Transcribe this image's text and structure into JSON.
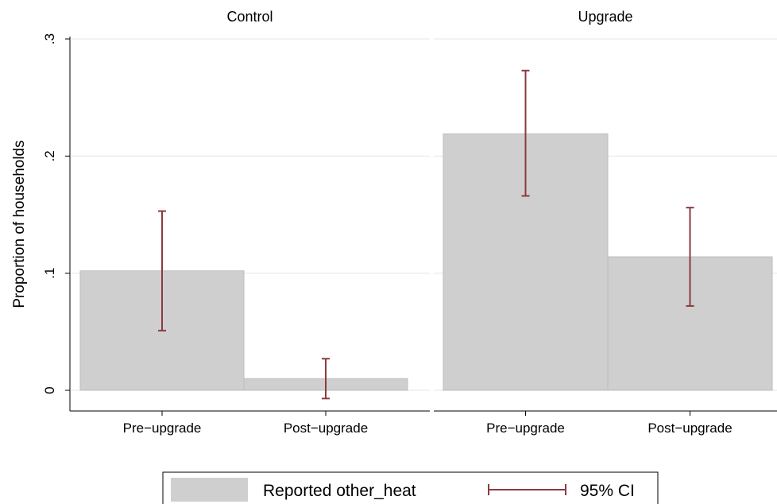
{
  "chart_data": {
    "type": "bar",
    "ylabel": "Proportion of households",
    "ylim": [
      0,
      0.3
    ],
    "yticks": [
      0,
      0.1,
      0.2,
      0.3
    ],
    "ytick_labels": [
      "0",
      ".1",
      ".2",
      ".3"
    ],
    "grid": true,
    "categories": [
      "Pre−upgrade",
      "Post−upgrade"
    ],
    "panels": [
      {
        "title": "Control",
        "values": [
          0.102,
          0.01
        ],
        "ci_low": [
          0.051,
          -0.007
        ],
        "ci_high": [
          0.153,
          0.027
        ]
      },
      {
        "title": "Upgrade",
        "values": [
          0.219,
          0.114
        ],
        "ci_low": [
          0.166,
          0.072
        ],
        "ci_high": [
          0.273,
          0.156
        ]
      }
    ],
    "legend": {
      "position": "bottom",
      "entries": [
        "Reported other_heat",
        "95% CI"
      ]
    },
    "colors": {
      "bar_fill": "#cfcfcf",
      "bar_stroke": "#bdbdbd",
      "ci": "#8c3a3f",
      "grid": "#e6e6e6",
      "axis": "#000000"
    }
  }
}
